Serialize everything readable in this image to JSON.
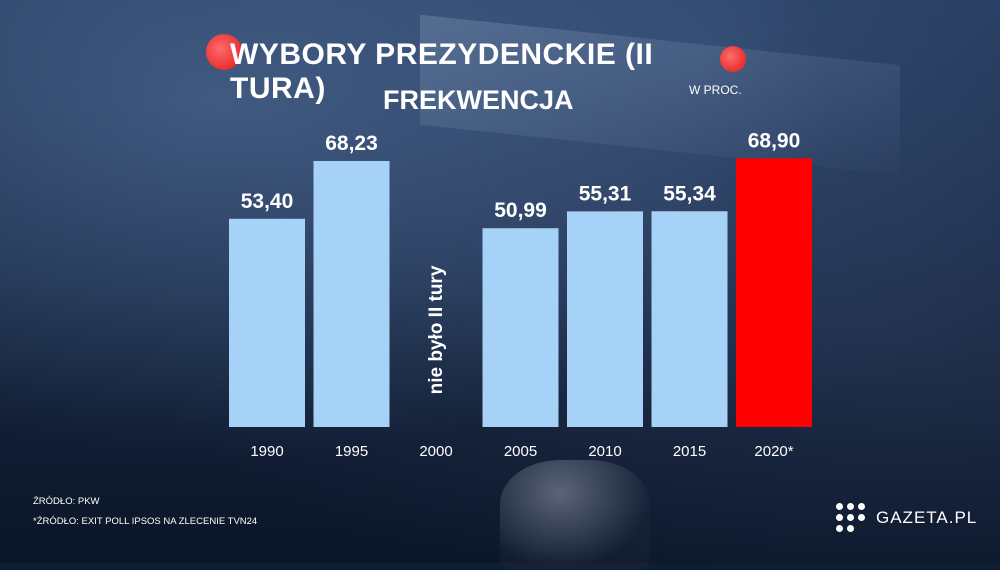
{
  "header": {
    "title": "WYBORY PREZYDENCKIE (II TURA)",
    "subtitle": "FREKWENCJA",
    "unit": "W PROC."
  },
  "footer": {
    "source1": "ŹRÓDŁO: PKW",
    "source2": "*ŹRÓDŁO: EXIT POLL IPSOS NA ZLECENIE TVN24"
  },
  "logo": {
    "text": "GAZETA.PL",
    "icon": "dots-logo-icon"
  },
  "colors": {
    "bar_default": "#a7d2f7",
    "bar_highlight": "#ff0000",
    "accent_dot": "#ff3b3b",
    "text": "#ffffff"
  },
  "chart_data": {
    "type": "bar",
    "categories": [
      "1990",
      "1995",
      "2000",
      "2005",
      "2010",
      "2015",
      "2020*"
    ],
    "values": [
      53.4,
      68.23,
      null,
      50.99,
      55.31,
      55.34,
      68.9
    ],
    "value_labels": [
      "53,40",
      "68,23",
      "",
      "50,99",
      "55,31",
      "55,34",
      "68,90"
    ],
    "highlight": [
      false,
      false,
      false,
      false,
      false,
      false,
      true
    ],
    "note": "nie było II tury",
    "note_category": "2000",
    "ylim": [
      0,
      100
    ],
    "grid": false,
    "legend": "none"
  }
}
